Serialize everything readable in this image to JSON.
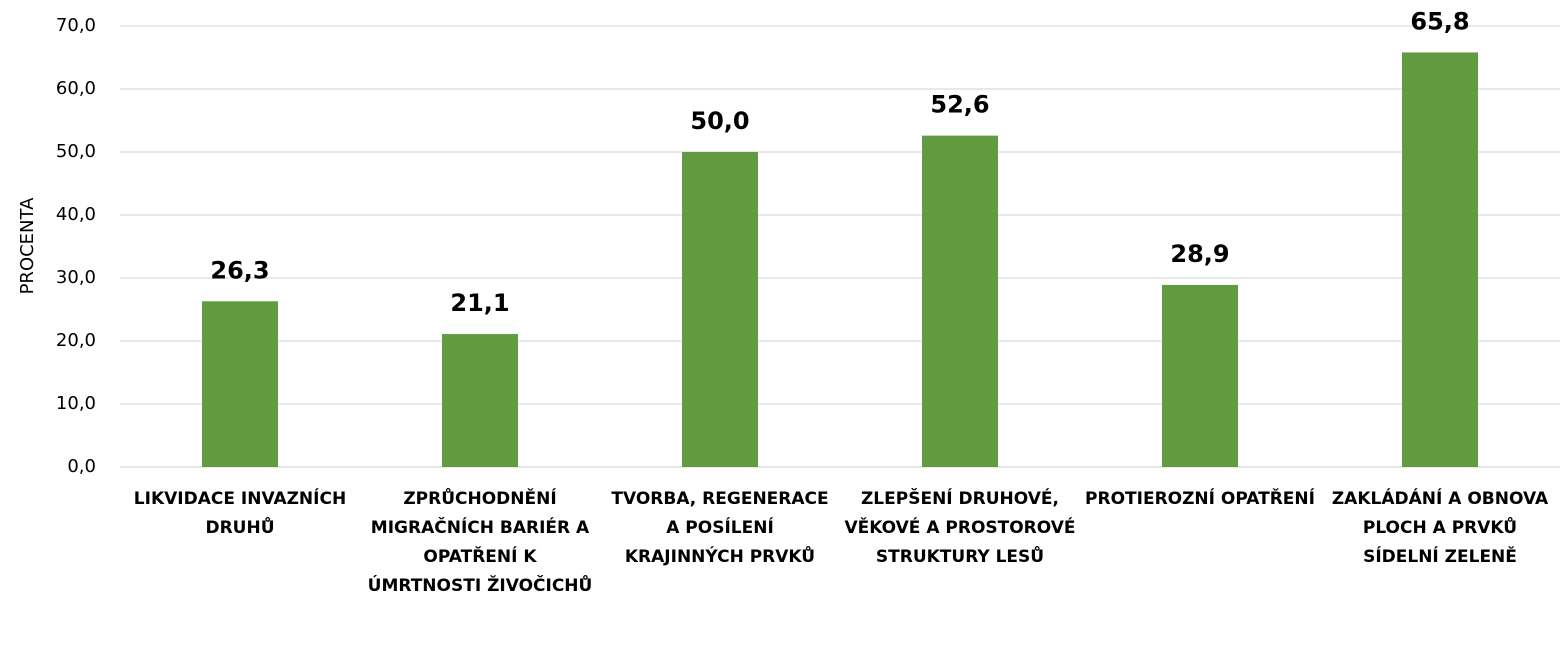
{
  "chart_data": {
    "type": "bar",
    "y_label": "PROCENTA",
    "categories": [
      "LIKVIDACE INVAZNÍCH DRUHŮ",
      "ZPRŮCHODNĚNÍ MIGRAČNÍCH BARIÉR A OPATŘENÍ K ÚMRTNOSTI ŽIVOČICHŮ",
      "TVORBA, REGENERACE A POSÍLENÍ KRAJINNÝCH PRVKŮ",
      "ZLEPŠENÍ DRUHOVÉ, VĚKOVÉ A PROSTOROVÉ STRUKTURY LESŮ",
      "PROTIEROZNÍ OPATŘENÍ",
      "ZAKLÁDÁNÍ A OBNOVA PLOCH A PRVKŮ SÍDELNÍ ZELENĚ"
    ],
    "values": [
      26.3,
      21.1,
      50.0,
      52.6,
      28.9,
      65.8
    ],
    "value_labels": [
      "26,3",
      "21,1",
      "50,0",
      "52,6",
      "28,9",
      "65,8"
    ],
    "color": "#629a40",
    "ylim": [
      0,
      70
    ],
    "yticks": [
      {
        "value": 0,
        "label": "0,0"
      },
      {
        "value": 10,
        "label": "10,0"
      },
      {
        "value": 20,
        "label": "20,0"
      },
      {
        "value": 30,
        "label": "30,0"
      },
      {
        "value": 40,
        "label": "40,0"
      },
      {
        "value": 50,
        "label": "50,0"
      },
      {
        "value": 60,
        "label": "60,0"
      },
      {
        "value": 70,
        "label": "70,0"
      }
    ],
    "grid": true
  }
}
